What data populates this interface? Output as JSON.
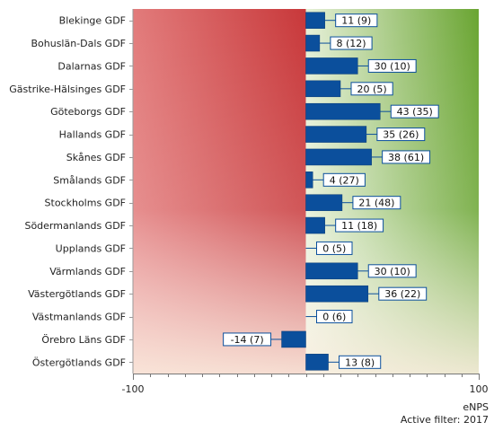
{
  "chart_data": {
    "type": "bar",
    "orientation": "horizontal",
    "categories": [
      "Blekinge GDF",
      "Bohuslän-Dals GDF",
      "Dalarnas GDF",
      "Gästrike-Hälsinges GDF",
      "Göteborgs GDF",
      "Hallands GDF",
      "Skånes GDF",
      "Smålands GDF",
      "Stockholms GDF",
      "Södermanlands GDF",
      "Upplands GDF",
      "Värmlands GDF",
      "Västergötlands GDF",
      "Västmanlands GDF",
      "Örebro Läns GDF",
      "Östergötlands GDF"
    ],
    "values": [
      11,
      8,
      30,
      20,
      43,
      35,
      38,
      4,
      21,
      11,
      0,
      30,
      36,
      0,
      -14,
      13
    ],
    "counts": [
      9,
      12,
      10,
      5,
      35,
      26,
      61,
      27,
      48,
      18,
      5,
      10,
      22,
      6,
      7,
      8
    ],
    "data_labels": [
      "11 (9)",
      "8 (12)",
      "30 (10)",
      "20 (5)",
      "43 (35)",
      "35 (26)",
      "38 (61)",
      "4 (27)",
      "21 (48)",
      "11 (18)",
      "0 (5)",
      "30 (10)",
      "36 (22)",
      "0 (6)",
      "-14 (7)",
      "13 (8)"
    ],
    "xlim": [
      -100,
      100
    ],
    "x_ticks": [
      "-100",
      "100"
    ],
    "xlabel": "eNPS",
    "bar_color": "#0b4f9c",
    "negative_bg": "#c8383a",
    "positive_bg": "#6aa532"
  },
  "footer": {
    "axis_title": "eNPS",
    "filter_text": "Active filter: 2017"
  }
}
